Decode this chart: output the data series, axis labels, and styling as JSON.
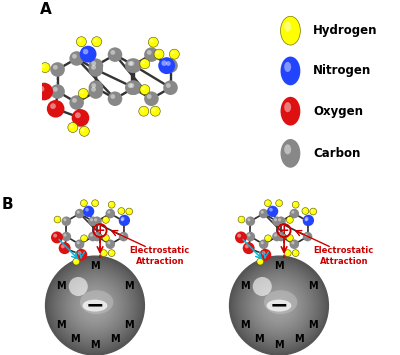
{
  "bg_color": "#ffffff",
  "legend_items": [
    {
      "label": "Hydrogen",
      "color": "#ffff00"
    },
    {
      "label": "Nitrogen",
      "color": "#2244ff"
    },
    {
      "label": "Oxygen",
      "color": "#dd1111"
    },
    {
      "label": "Carbon",
      "color": "#888888"
    }
  ],
  "panel_A_label": "A",
  "panel_B_label": "B",
  "electrostatic_text": "Electrostatic\nAttraction",
  "electrostatic_color": "#cc0000",
  "M_label": "M",
  "minus_label": "−",
  "plus_label": "+"
}
